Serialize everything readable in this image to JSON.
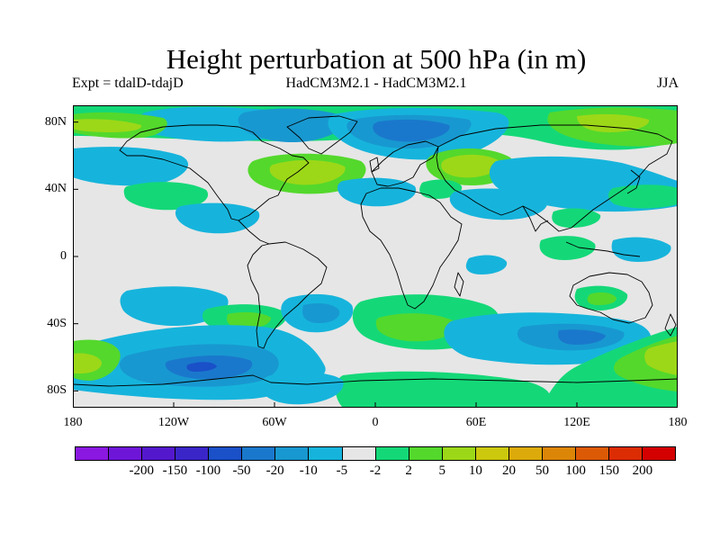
{
  "title": "Height perturbation at 500 hPa (in m)",
  "subtitle_left": "Expt = tdalD-tdajD",
  "subtitle_center": "HadCM3M2.1 - HadCM3M2.1",
  "subtitle_right": "JJA",
  "map": {
    "projection": "cylindrical-equidistant",
    "lon_range": [
      -180,
      180
    ],
    "lat_range": [
      -90,
      90
    ],
    "background_color": "#e6e6e6",
    "coastline_color": "#000000",
    "lat_ticks": [
      {
        "value": 80,
        "label": "80N"
      },
      {
        "value": 40,
        "label": "40N"
      },
      {
        "value": 0,
        "label": "0"
      },
      {
        "value": -40,
        "label": "40S"
      },
      {
        "value": -80,
        "label": "80S"
      }
    ],
    "lon_ticks": [
      {
        "value": -180,
        "label": "180"
      },
      {
        "value": -120,
        "label": "120W"
      },
      {
        "value": -60,
        "label": "60W"
      },
      {
        "value": 0,
        "label": "0"
      },
      {
        "value": 60,
        "label": "60E"
      },
      {
        "value": 120,
        "label": "120E"
      },
      {
        "value": 180,
        "label": "180"
      }
    ]
  },
  "colorbar": {
    "colors": [
      "#8a18e0",
      "#6e16d8",
      "#5418cc",
      "#3a26c8",
      "#1a50c8",
      "#1a78cc",
      "#1898d0",
      "#16b4dc",
      "#e6e6e6",
      "#14d878",
      "#54d82c",
      "#9cd818",
      "#ccc80e",
      "#dcaa0a",
      "#dc8608",
      "#dc5a06",
      "#dc2c04",
      "#d40000"
    ],
    "labels": [
      "-200",
      "-150",
      "-100",
      "-50",
      "-20",
      "-10",
      "-5",
      "-2",
      "2",
      "5",
      "10",
      "20",
      "50",
      "100",
      "150",
      "200"
    ]
  }
}
